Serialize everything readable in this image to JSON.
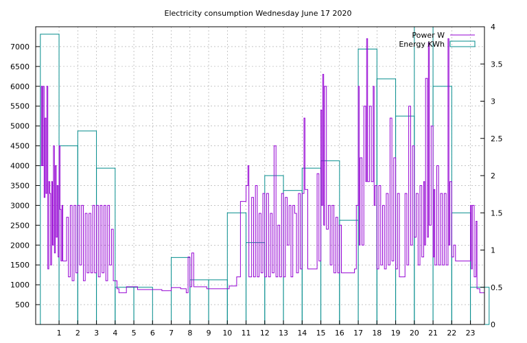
{
  "chart_data": {
    "type": "line",
    "title": "Electricity consumption Wednesday June 17 2020",
    "xlabel": "",
    "ylabel": "",
    "y2label": "",
    "grid": true,
    "legend_position": "top-right",
    "xlim": [
      -0.25,
      23.75
    ],
    "x_ticks": [
      1,
      2,
      3,
      4,
      5,
      6,
      7,
      8,
      9,
      10,
      11,
      12,
      13,
      14,
      15,
      16,
      17,
      18,
      19,
      20,
      21,
      22,
      23
    ],
    "ylim": [
      0,
      7500
    ],
    "y_ticks": [
      500,
      1000,
      1500,
      2000,
      2500,
      3000,
      3500,
      4000,
      4500,
      5000,
      5500,
      6000,
      6500,
      7000
    ],
    "y2lim": [
      0,
      4
    ],
    "y2_ticks": [
      0,
      0.5,
      1,
      1.5,
      2,
      2.5,
      3,
      3.5,
      4
    ],
    "series": [
      {
        "name": "Power W",
        "axis": "y",
        "color": "#9400d3",
        "style": "steps",
        "points": [
          [
            0.0,
            4000
          ],
          [
            0.05,
            6000
          ],
          [
            0.1,
            4000
          ],
          [
            0.15,
            6000
          ],
          [
            0.2,
            3200
          ],
          [
            0.25,
            5200
          ],
          [
            0.3,
            3300
          ],
          [
            0.35,
            6000
          ],
          [
            0.4,
            1400
          ],
          [
            0.45,
            3600
          ],
          [
            0.5,
            3300
          ],
          [
            0.55,
            1500
          ],
          [
            0.6,
            3600
          ],
          [
            0.65,
            2000
          ],
          [
            0.7,
            4500
          ],
          [
            0.75,
            1800
          ],
          [
            0.8,
            4000
          ],
          [
            0.85,
            2200
          ],
          [
            0.9,
            3500
          ],
          [
            0.95,
            1700
          ],
          [
            1.0,
            4500
          ],
          [
            1.05,
            2900
          ],
          [
            1.1,
            1600
          ],
          [
            1.15,
            3000
          ],
          [
            1.2,
            1600
          ],
          [
            1.3,
            1600
          ],
          [
            1.4,
            2700
          ],
          [
            1.5,
            1200
          ],
          [
            1.6,
            3000
          ],
          [
            1.7,
            1100
          ],
          [
            1.8,
            3000
          ],
          [
            1.9,
            1300
          ],
          [
            2.0,
            3000
          ],
          [
            2.1,
            1500
          ],
          [
            2.2,
            3000
          ],
          [
            2.3,
            1100
          ],
          [
            2.4,
            2800
          ],
          [
            2.5,
            1300
          ],
          [
            2.6,
            2800
          ],
          [
            2.7,
            1300
          ],
          [
            2.8,
            3000
          ],
          [
            2.9,
            1300
          ],
          [
            3.0,
            3000
          ],
          [
            3.1,
            1200
          ],
          [
            3.2,
            3000
          ],
          [
            3.3,
            1300
          ],
          [
            3.4,
            3000
          ],
          [
            3.5,
            1100
          ],
          [
            3.6,
            3000
          ],
          [
            3.7,
            1500
          ],
          [
            3.8,
            2400
          ],
          [
            3.9,
            1100
          ],
          [
            4.0,
            1100
          ],
          [
            4.1,
            900
          ],
          [
            4.2,
            800
          ],
          [
            4.4,
            800
          ],
          [
            4.6,
            950
          ],
          [
            5.0,
            950
          ],
          [
            5.2,
            880
          ],
          [
            6.0,
            880
          ],
          [
            6.5,
            850
          ],
          [
            7.0,
            930
          ],
          [
            7.5,
            900
          ],
          [
            7.8,
            800
          ],
          [
            7.9,
            1700
          ],
          [
            8.0,
            950
          ],
          [
            8.1,
            1800
          ],
          [
            8.2,
            950
          ],
          [
            8.5,
            950
          ],
          [
            8.9,
            900
          ],
          [
            9.3,
            900
          ],
          [
            9.7,
            900
          ],
          [
            10.1,
            970
          ],
          [
            10.5,
            1200
          ],
          [
            10.7,
            3100
          ],
          [
            10.9,
            3100
          ],
          [
            11.0,
            3500
          ],
          [
            11.1,
            4000
          ],
          [
            11.15,
            1200
          ],
          [
            11.3,
            3200
          ],
          [
            11.4,
            1200
          ],
          [
            11.5,
            3500
          ],
          [
            11.6,
            1200
          ],
          [
            11.7,
            2800
          ],
          [
            11.8,
            1300
          ],
          [
            11.9,
            3300
          ],
          [
            12.0,
            1200
          ],
          [
            12.1,
            3300
          ],
          [
            12.2,
            1200
          ],
          [
            12.3,
            2800
          ],
          [
            12.4,
            1300
          ],
          [
            12.5,
            4500
          ],
          [
            12.6,
            1200
          ],
          [
            12.7,
            2500
          ],
          [
            12.8,
            1200
          ],
          [
            12.9,
            3300
          ],
          [
            13.0,
            1200
          ],
          [
            13.1,
            3200
          ],
          [
            13.2,
            2000
          ],
          [
            13.3,
            3000
          ],
          [
            13.4,
            1200
          ],
          [
            13.5,
            3000
          ],
          [
            13.6,
            2800
          ],
          [
            13.7,
            1300
          ],
          [
            13.8,
            3300
          ],
          [
            13.9,
            1400
          ],
          [
            14.0,
            3300
          ],
          [
            14.1,
            5200
          ],
          [
            14.15,
            3400
          ],
          [
            14.3,
            1400
          ],
          [
            14.6,
            1400
          ],
          [
            14.8,
            3800
          ],
          [
            14.9,
            1600
          ],
          [
            15.0,
            5400
          ],
          [
            15.05,
            3000
          ],
          [
            15.1,
            6300
          ],
          [
            15.15,
            2500
          ],
          [
            15.2,
            6000
          ],
          [
            15.3,
            2400
          ],
          [
            15.4,
            3000
          ],
          [
            15.5,
            1500
          ],
          [
            15.6,
            3000
          ],
          [
            15.7,
            1300
          ],
          [
            15.8,
            2700
          ],
          [
            15.9,
            1300
          ],
          [
            16.0,
            2500
          ],
          [
            16.1,
            1300
          ],
          [
            16.3,
            1300
          ],
          [
            16.6,
            1300
          ],
          [
            16.8,
            1400
          ],
          [
            16.9,
            3000
          ],
          [
            17.0,
            6000
          ],
          [
            17.05,
            2000
          ],
          [
            17.1,
            4200
          ],
          [
            17.2,
            2000
          ],
          [
            17.3,
            5500
          ],
          [
            17.4,
            3600
          ],
          [
            17.45,
            7200
          ],
          [
            17.5,
            3600
          ],
          [
            17.6,
            5500
          ],
          [
            17.7,
            3600
          ],
          [
            17.8,
            6000
          ],
          [
            17.85,
            3000
          ],
          [
            17.9,
            3500
          ],
          [
            18.0,
            1400
          ],
          [
            18.1,
            3500
          ],
          [
            18.2,
            1500
          ],
          [
            18.3,
            3000
          ],
          [
            18.4,
            1400
          ],
          [
            18.5,
            3300
          ],
          [
            18.6,
            1500
          ],
          [
            18.7,
            5200
          ],
          [
            18.8,
            1600
          ],
          [
            18.9,
            4200
          ],
          [
            19.0,
            1400
          ],
          [
            19.1,
            3300
          ],
          [
            19.2,
            1200
          ],
          [
            19.4,
            1200
          ],
          [
            19.5,
            3300
          ],
          [
            19.6,
            1500
          ],
          [
            19.7,
            5500
          ],
          [
            19.8,
            2000
          ],
          [
            19.9,
            4500
          ],
          [
            20.0,
            2200
          ],
          [
            20.1,
            3300
          ],
          [
            20.2,
            1500
          ],
          [
            20.3,
            3500
          ],
          [
            20.4,
            1700
          ],
          [
            20.5,
            3600
          ],
          [
            20.55,
            2000
          ],
          [
            20.6,
            6200
          ],
          [
            20.7,
            2200
          ],
          [
            20.75,
            7100
          ],
          [
            20.8,
            2500
          ],
          [
            20.9,
            5000
          ],
          [
            21.0,
            1700
          ],
          [
            21.05,
            3400
          ],
          [
            21.1,
            1500
          ],
          [
            21.2,
            4000
          ],
          [
            21.3,
            1500
          ],
          [
            21.4,
            3300
          ],
          [
            21.5,
            1500
          ],
          [
            21.6,
            3300
          ],
          [
            21.7,
            1500
          ],
          [
            21.8,
            7200
          ],
          [
            21.85,
            2000
          ],
          [
            21.9,
            3600
          ],
          [
            22.0,
            1700
          ],
          [
            22.1,
            2000
          ],
          [
            22.2,
            1600
          ],
          [
            22.6,
            1600
          ],
          [
            22.9,
            1600
          ],
          [
            23.0,
            3000
          ],
          [
            23.05,
            1400
          ],
          [
            23.1,
            3000
          ],
          [
            23.2,
            1200
          ],
          [
            23.3,
            2600
          ],
          [
            23.35,
            900
          ],
          [
            23.5,
            800
          ],
          [
            23.75,
            800
          ]
        ]
      },
      {
        "name": "Energy KWh",
        "axis": "y2",
        "color": "#008b8b",
        "style": "boxes",
        "x": [
          0,
          1,
          2,
          3,
          4,
          5,
          6,
          7,
          8,
          9,
          10,
          11,
          12,
          13,
          14,
          15,
          16,
          17,
          18,
          19,
          20,
          21,
          22,
          23
        ],
        "values": [
          3.9,
          2.4,
          2.6,
          2.1,
          0.5,
          0.5,
          0,
          0.9,
          0.6,
          0.6,
          1.5,
          1.1,
          2.0,
          1.8,
          2.1,
          2.2,
          1.4,
          3.7,
          3.3,
          2.8,
          4.0,
          3.2,
          1.5,
          0.5
        ]
      }
    ]
  }
}
